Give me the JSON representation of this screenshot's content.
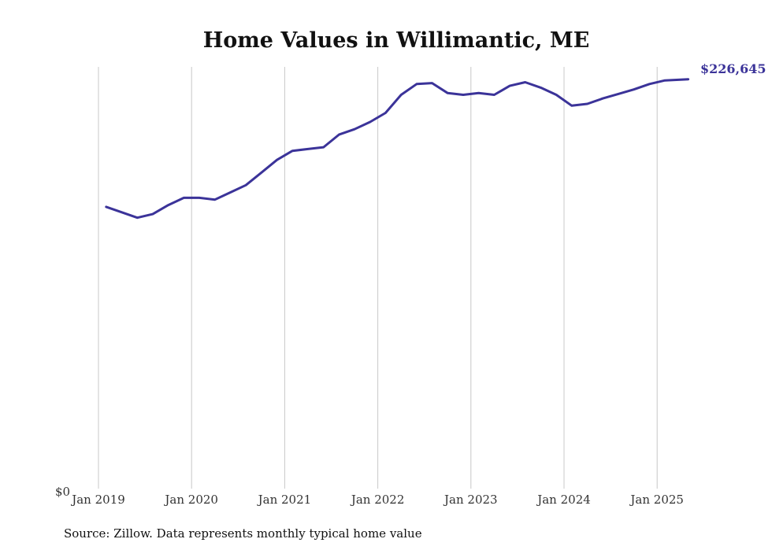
{
  "chart_data": {
    "type": "line",
    "title": "Home Values in Willimantic, ME",
    "xlabel": "",
    "ylabel": "",
    "source": "Source: Zillow. Data represents monthly typical home value",
    "ylim": [
      0,
      230000
    ],
    "y_zero_label": "$0",
    "end_label": "$226,645",
    "line_color": "#3b3399",
    "grid": "vertical",
    "x_ticks": [
      {
        "label": "Jan 2019",
        "t": 2019.0
      },
      {
        "label": "Jan 2020",
        "t": 2020.0
      },
      {
        "label": "Jan 2021",
        "t": 2021.0
      },
      {
        "label": "Jan 2022",
        "t": 2022.0
      },
      {
        "label": "Jan 2023",
        "t": 2023.0
      },
      {
        "label": "Jan 2024",
        "t": 2024.0
      },
      {
        "label": "Jan 2025",
        "t": 2025.0
      }
    ],
    "series": [
      {
        "x": [
          "2019-02",
          "2019-04",
          "2019-06",
          "2019-08",
          "2019-10",
          "2019-12",
          "2020-02",
          "2020-04",
          "2020-06",
          "2020-08",
          "2020-10",
          "2020-12",
          "2021-02",
          "2021-04",
          "2021-06",
          "2021-08",
          "2021-10",
          "2021-12",
          "2022-02",
          "2022-04",
          "2022-06",
          "2022-08",
          "2022-10",
          "2022-12",
          "2023-02",
          "2023-04",
          "2023-06",
          "2023-08",
          "2023-10",
          "2023-12",
          "2024-02",
          "2024-04",
          "2024-06",
          "2024-08",
          "2024-10",
          "2024-12",
          "2025-02",
          "2025-04",
          "2025-05"
        ],
        "values": [
          156000,
          153000,
          150000,
          152000,
          157000,
          161000,
          161000,
          160000,
          164000,
          168000,
          175000,
          182000,
          187000,
          188000,
          189000,
          196000,
          199000,
          203000,
          208000,
          218000,
          224000,
          224500,
          219000,
          218000,
          219000,
          218000,
          223000,
          225000,
          222000,
          218000,
          212000,
          213000,
          216000,
          218500,
          221000,
          224000,
          226000,
          226400,
          226645
        ]
      }
    ]
  }
}
